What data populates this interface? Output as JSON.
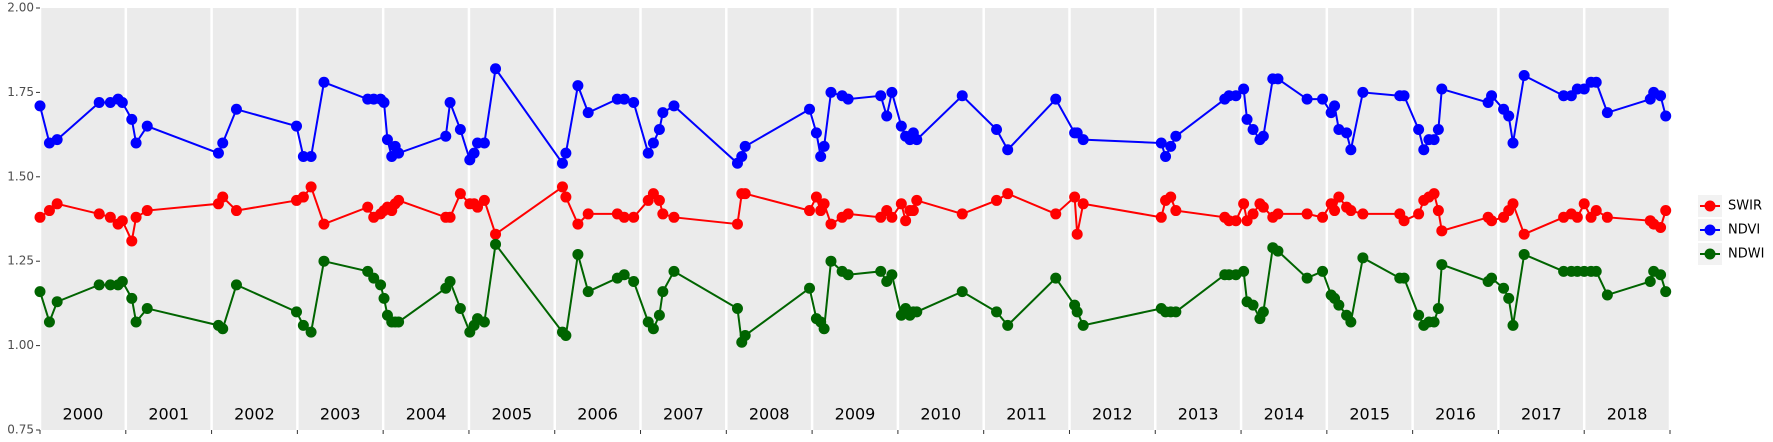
{
  "chart_data": {
    "type": "line",
    "x": [
      2000.0,
      2000.11,
      2000.2,
      2000.69,
      2000.82,
      2000.91,
      2000.96,
      2001.07,
      2001.12,
      2001.25,
      2002.08,
      2002.13,
      2002.29,
      2002.99,
      2003.07,
      2003.16,
      2003.31,
      2003.82,
      2003.89,
      2003.97,
      2004.01,
      2004.05,
      2004.1,
      2004.14,
      2004.18,
      2004.73,
      2004.78,
      2004.9,
      2005.01,
      2005.06,
      2005.1,
      2005.18,
      2005.31,
      2006.09,
      2006.13,
      2006.27,
      2006.39,
      2006.73,
      2006.81,
      2006.92,
      2007.09,
      2007.15,
      2007.22,
      2007.26,
      2007.39,
      2008.13,
      2008.18,
      2008.22,
      2008.97,
      2009.05,
      2009.1,
      2009.14,
      2009.22,
      2009.35,
      2009.42,
      2009.8,
      2009.87,
      2009.93,
      2010.04,
      2010.09,
      2010.14,
      2010.18,
      2010.22,
      2010.75,
      2011.15,
      2011.28,
      2011.84,
      2012.06,
      2012.09,
      2012.16,
      2013.07,
      2013.12,
      2013.18,
      2013.24,
      2013.81,
      2013.86,
      2013.94,
      2014.03,
      2014.07,
      2014.14,
      2014.22,
      2014.26,
      2014.37,
      2014.43,
      2014.77,
      2014.95,
      2015.05,
      2015.09,
      2015.14,
      2015.23,
      2015.28,
      2015.42,
      2015.85,
      2015.9,
      2016.07,
      2016.13,
      2016.19,
      2016.25,
      2016.3,
      2016.34,
      2016.88,
      2016.92,
      2017.06,
      2017.12,
      2017.17,
      2017.3,
      2017.76,
      2017.85,
      2017.92,
      2018.0,
      2018.08,
      2018.14,
      2018.27,
      2018.77,
      2018.81,
      2018.89,
      2018.95
    ],
    "series": [
      {
        "name": "SWIR",
        "color": "#ff0000",
        "values": [
          1.38,
          1.4,
          1.42,
          1.39,
          1.38,
          1.36,
          1.37,
          1.31,
          1.38,
          1.4,
          1.42,
          1.44,
          1.4,
          1.43,
          1.44,
          1.47,
          1.36,
          1.41,
          1.38,
          1.39,
          1.4,
          1.41,
          1.4,
          1.42,
          1.43,
          1.38,
          1.38,
          1.45,
          1.42,
          1.42,
          1.41,
          1.43,
          1.33,
          1.47,
          1.44,
          1.36,
          1.39,
          1.39,
          1.38,
          1.38,
          1.43,
          1.45,
          1.43,
          1.39,
          1.38,
          1.36,
          1.45,
          1.45,
          1.4,
          1.44,
          1.4,
          1.42,
          1.36,
          1.38,
          1.39,
          1.38,
          1.4,
          1.38,
          1.42,
          1.37,
          1.4,
          1.4,
          1.43,
          1.39,
          1.43,
          1.45,
          1.39,
          1.44,
          1.33,
          1.42,
          1.38,
          1.43,
          1.44,
          1.4,
          1.38,
          1.37,
          1.37,
          1.42,
          1.37,
          1.39,
          1.42,
          1.41,
          1.38,
          1.39,
          1.39,
          1.38,
          1.42,
          1.4,
          1.44,
          1.41,
          1.4,
          1.39,
          1.39,
          1.37,
          1.39,
          1.43,
          1.44,
          1.45,
          1.4,
          1.34,
          1.38,
          1.37,
          1.38,
          1.4,
          1.42,
          1.33,
          1.38,
          1.39,
          1.38,
          1.42,
          1.38,
          1.4,
          1.38,
          1.37,
          1.36,
          1.35,
          1.4
        ]
      },
      {
        "name": "NDVI",
        "color": "#0000ff",
        "values": [
          1.71,
          1.6,
          1.61,
          1.72,
          1.72,
          1.73,
          1.72,
          1.67,
          1.6,
          1.65,
          1.57,
          1.6,
          1.7,
          1.65,
          1.56,
          1.56,
          1.78,
          1.73,
          1.73,
          1.73,
          1.72,
          1.61,
          1.56,
          1.59,
          1.57,
          1.62,
          1.72,
          1.64,
          1.55,
          1.57,
          1.6,
          1.6,
          1.82,
          1.54,
          1.57,
          1.77,
          1.69,
          1.73,
          1.73,
          1.72,
          1.57,
          1.6,
          1.64,
          1.69,
          1.71,
          1.54,
          1.56,
          1.59,
          1.7,
          1.63,
          1.56,
          1.59,
          1.75,
          1.74,
          1.73,
          1.74,
          1.68,
          1.75,
          1.65,
          1.62,
          1.61,
          1.63,
          1.61,
          1.74,
          1.64,
          1.58,
          1.73,
          1.63,
          1.63,
          1.61,
          1.6,
          1.56,
          1.59,
          1.62,
          1.73,
          1.74,
          1.74,
          1.76,
          1.67,
          1.64,
          1.61,
          1.62,
          1.79,
          1.79,
          1.73,
          1.73,
          1.69,
          1.71,
          1.64,
          1.63,
          1.58,
          1.75,
          1.74,
          1.74,
          1.64,
          1.58,
          1.61,
          1.61,
          1.64,
          1.76,
          1.72,
          1.74,
          1.7,
          1.68,
          1.6,
          1.8,
          1.74,
          1.74,
          1.76,
          1.76,
          1.78,
          1.78,
          1.69,
          1.73,
          1.75,
          1.74,
          1.68
        ]
      },
      {
        "name": "NDWI",
        "color": "#006400",
        "values": [
          1.16,
          1.07,
          1.13,
          1.18,
          1.18,
          1.18,
          1.19,
          1.14,
          1.07,
          1.11,
          1.06,
          1.05,
          1.18,
          1.1,
          1.06,
          1.04,
          1.25,
          1.22,
          1.2,
          1.18,
          1.14,
          1.09,
          1.07,
          1.07,
          1.07,
          1.17,
          1.19,
          1.11,
          1.04,
          1.06,
          1.08,
          1.07,
          1.3,
          1.04,
          1.03,
          1.27,
          1.16,
          1.2,
          1.21,
          1.19,
          1.07,
          1.05,
          1.09,
          1.16,
          1.22,
          1.11,
          1.01,
          1.03,
          1.17,
          1.08,
          1.07,
          1.05,
          1.25,
          1.22,
          1.21,
          1.22,
          1.19,
          1.21,
          1.09,
          1.11,
          1.09,
          1.1,
          1.1,
          1.16,
          1.1,
          1.06,
          1.2,
          1.12,
          1.1,
          1.06,
          1.11,
          1.1,
          1.1,
          1.1,
          1.21,
          1.21,
          1.21,
          1.22,
          1.13,
          1.12,
          1.08,
          1.1,
          1.29,
          1.28,
          1.2,
          1.22,
          1.15,
          1.14,
          1.12,
          1.09,
          1.07,
          1.26,
          1.2,
          1.2,
          1.09,
          1.06,
          1.07,
          1.07,
          1.11,
          1.24,
          1.19,
          1.2,
          1.17,
          1.14,
          1.06,
          1.27,
          1.22,
          1.22,
          1.22,
          1.22,
          1.22,
          1.22,
          1.15,
          1.19,
          1.22,
          1.21,
          1.16
        ]
      }
    ],
    "xlim": [
      2000,
      2019
    ],
    "xticks": [
      2000,
      2001,
      2002,
      2003,
      2004,
      2005,
      2006,
      2007,
      2008,
      2009,
      2010,
      2011,
      2012,
      2013,
      2014,
      2015,
      2016,
      2017,
      2018,
      2019
    ],
    "year_labels": [
      2000,
      2001,
      2002,
      2003,
      2004,
      2005,
      2006,
      2007,
      2008,
      2009,
      2010,
      2011,
      2012,
      2013,
      2014,
      2015,
      2016,
      2017,
      2018
    ],
    "ylim": [
      0.75,
      2.0
    ],
    "yticks": [
      {
        "value": 0.75,
        "label": "0.75"
      },
      {
        "value": 1.0,
        "label": "1.00"
      },
      {
        "value": 1.25,
        "label": "1.25"
      },
      {
        "value": 1.5,
        "label": "1.50"
      },
      {
        "value": 1.75,
        "label": "1.75"
      },
      {
        "value": 2.0,
        "label": "2.00"
      }
    ],
    "xgrid": true,
    "legend": "right"
  }
}
